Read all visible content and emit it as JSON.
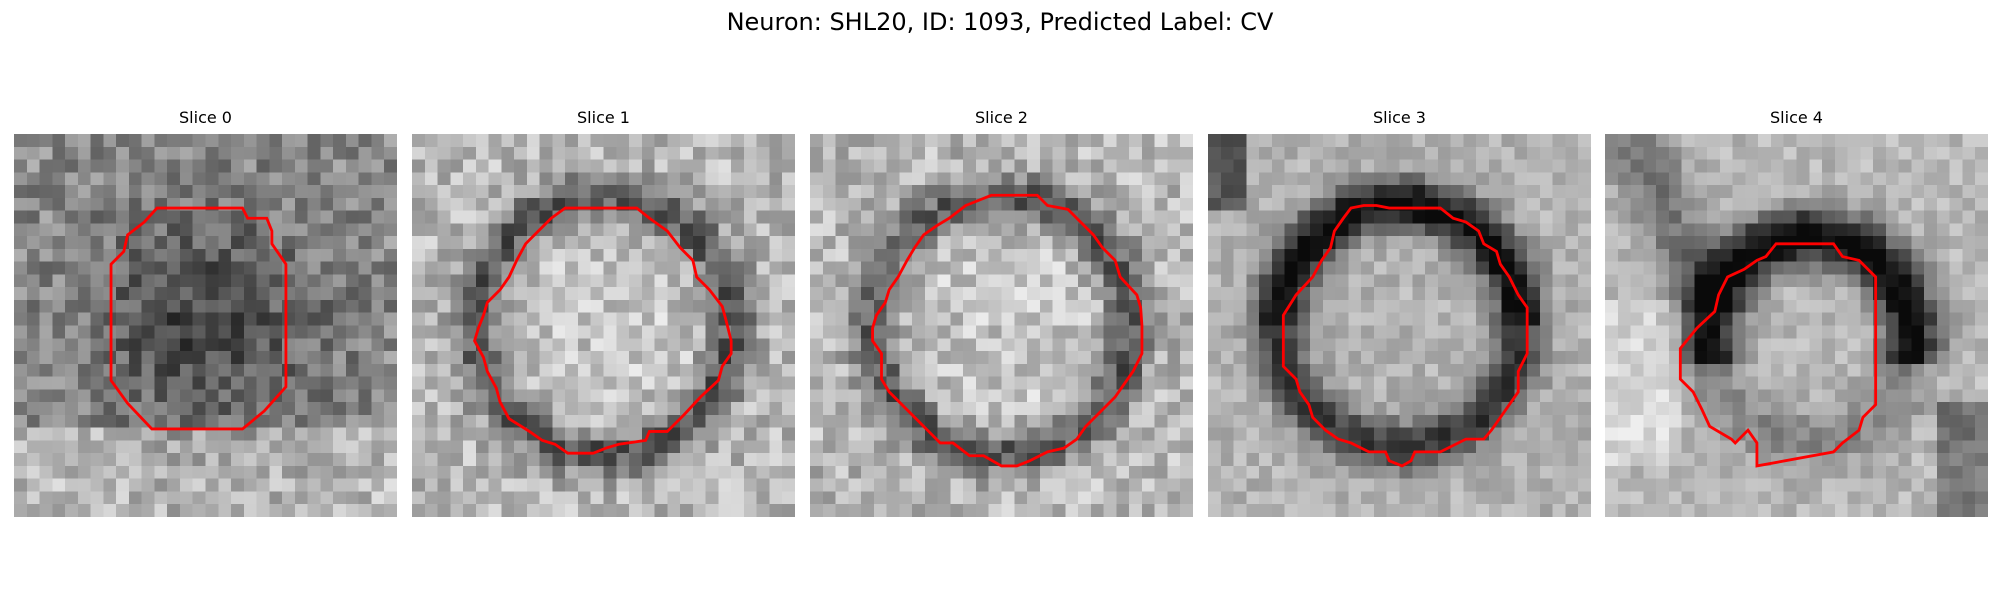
{
  "figure": {
    "title": "Neuron: SHL20, ID: 1093, Predicted Label: CV"
  },
  "panels": [
    {
      "title": "Slice 0",
      "seed": 11,
      "pattern": "dark-blob"
    },
    {
      "title": "Slice 1",
      "seed": 23,
      "pattern": "bright-cell-dark-rim"
    },
    {
      "title": "Slice 2",
      "seed": 37,
      "pattern": "bright-cell-dark-rim"
    },
    {
      "title": "Slice 3",
      "seed": 53,
      "pattern": "dark-ring-smooth"
    },
    {
      "title": "Slice 4",
      "seed": 71,
      "pattern": "dark-arc-top"
    }
  ],
  "colors": {
    "contour": "#ff0000",
    "background": "#ffffff",
    "colormap": "grayscale"
  }
}
